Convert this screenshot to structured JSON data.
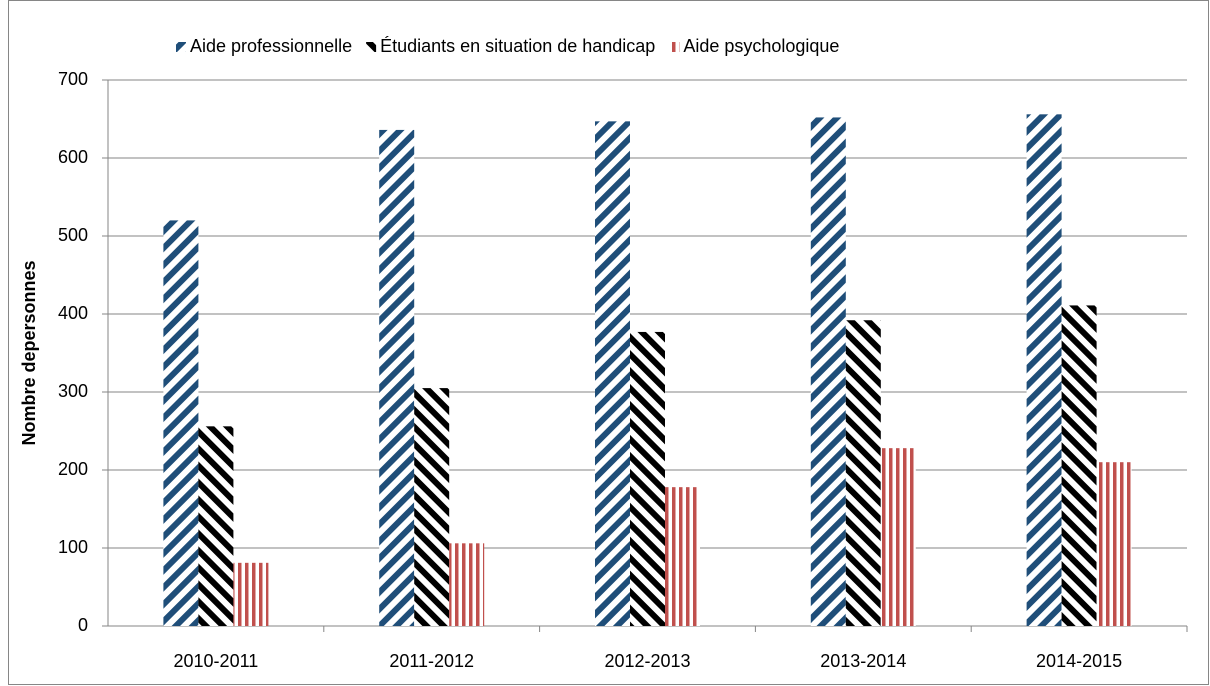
{
  "chart_data": {
    "type": "bar",
    "y_label": "Nombre depersonnes",
    "categories": [
      "2010-2011",
      "2011-2012",
      "2012-2013",
      "2013-2014",
      "2014-2015"
    ],
    "series": [
      {
        "name": "Aide professionnelle",
        "color": "#1f4e79",
        "values": [
          520,
          636,
          647,
          652,
          656
        ]
      },
      {
        "name": "Étudiants en situation de handicap",
        "color": "#000000",
        "values": [
          256,
          305,
          377,
          392,
          411
        ]
      },
      {
        "name": "Aide psychologique",
        "color": "#c0504d",
        "values": [
          81,
          106,
          178,
          228,
          210
        ]
      }
    ],
    "ylim": [
      0,
      700
    ],
    "yticks": [
      0,
      100,
      200,
      300,
      400,
      500,
      600,
      700
    ],
    "grid": true,
    "legend": "top"
  }
}
